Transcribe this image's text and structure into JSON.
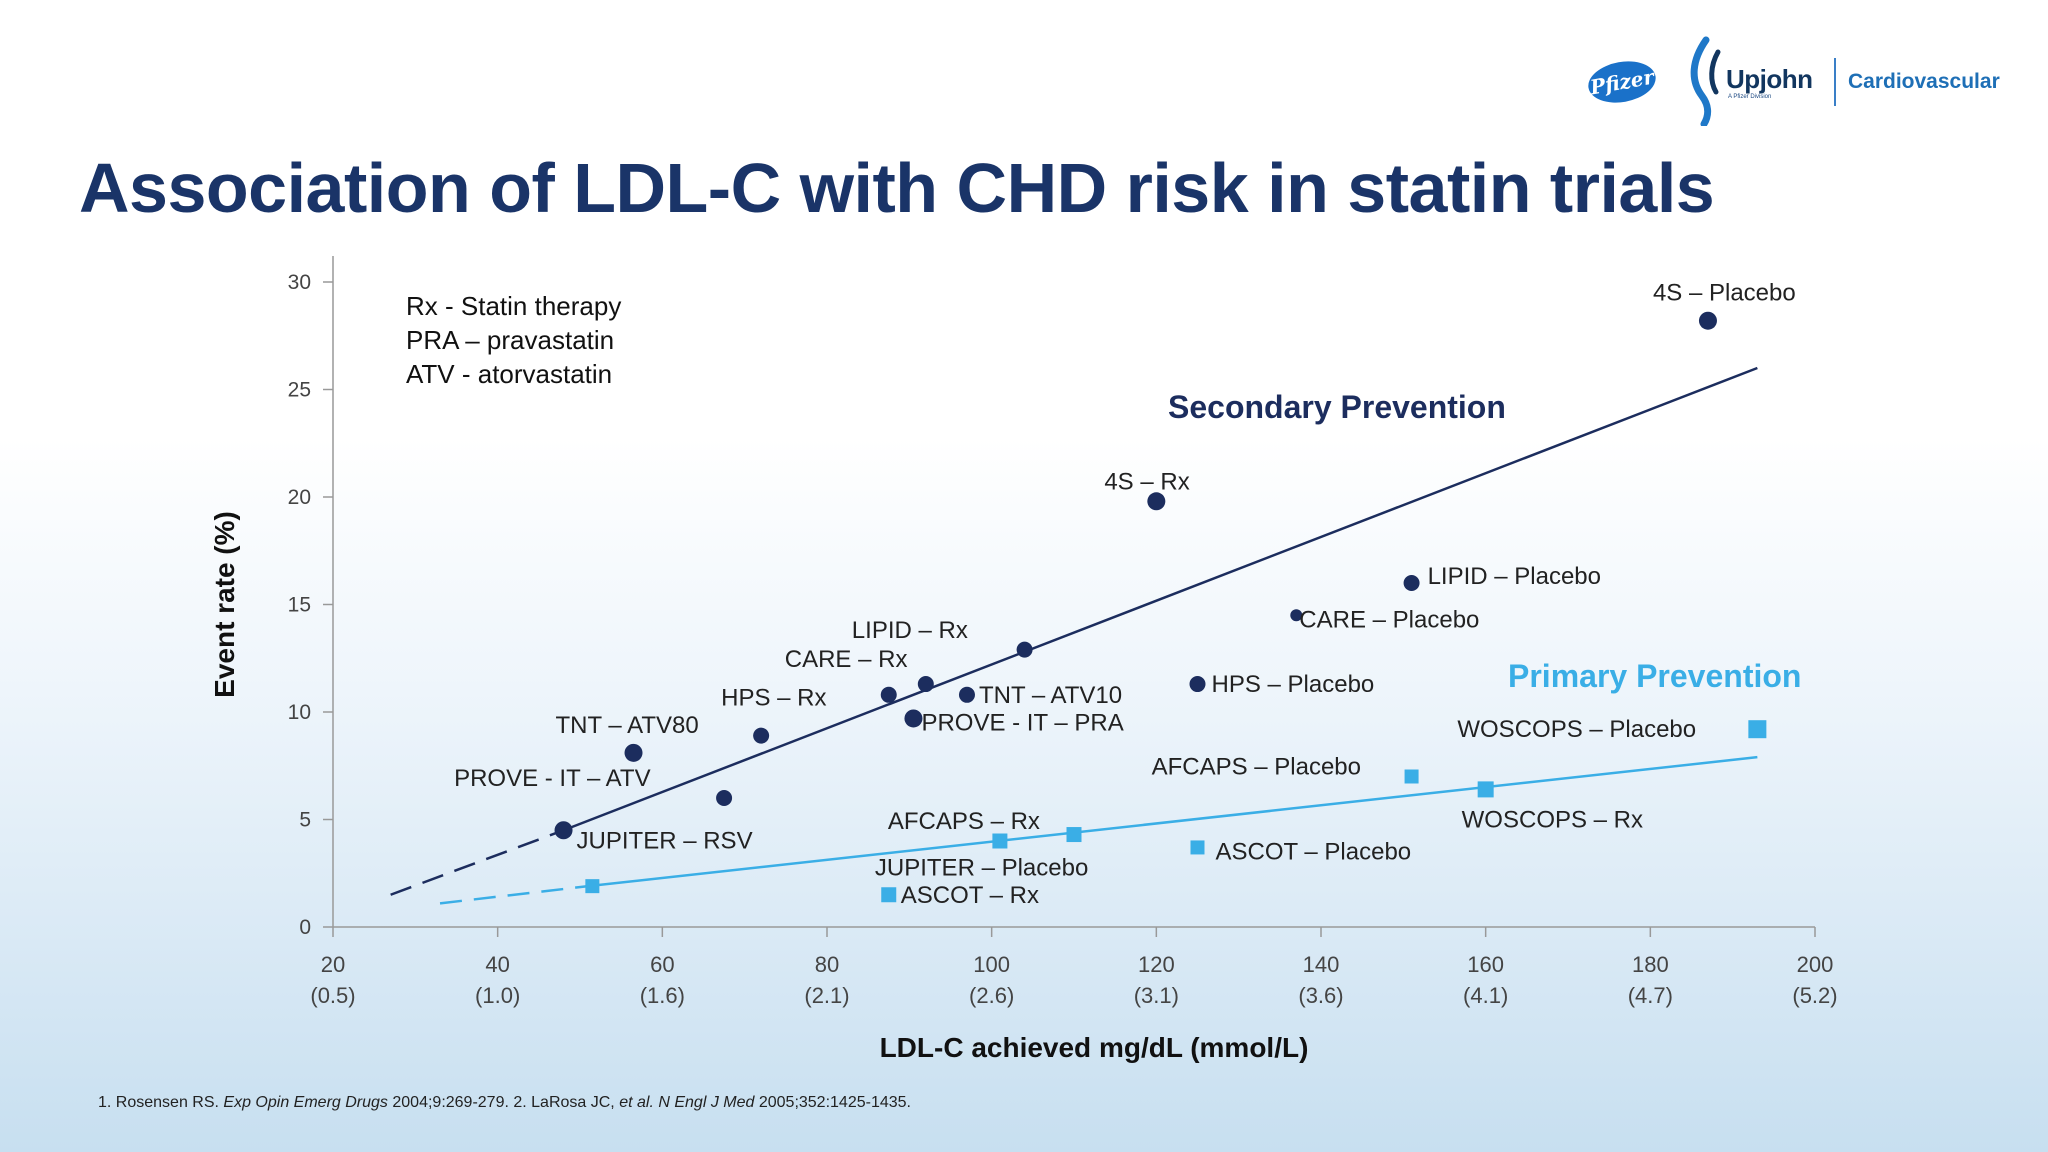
{
  "header": {
    "title": "Association of LDL-C with CHD risk in statin trials",
    "logo_pfizer": "Pfizer",
    "logo_upjohn": "Upjohn",
    "logo_upjohn_sub": "A Pfizer Division",
    "logo_division": "Cardiovascular"
  },
  "colors": {
    "title": "#1a3468",
    "secondary": "#1c2d5e",
    "primary": "#3aaee6",
    "axis": "#999999"
  },
  "footnote": {
    "ref1_author": "1. Rosensen RS.",
    "ref1_journal": "Exp Opin Emerg Drugs",
    "ref1_detail": "2004;9:269-279. 2. LaRosa JC,",
    "ref2_etal": "et al.",
    "ref2_journal": "N Engl J Med",
    "ref2_detail": "2005;352:1425-1435."
  },
  "chart_data": {
    "type": "scatter",
    "xlabel": "LDL-C achieved mg/dL (mmol/L)",
    "ylabel": "Event rate (%)",
    "xlim": [
      20,
      200
    ],
    "ylim": [
      0,
      30
    ],
    "x_ticks": [
      {
        "value": 20,
        "label": "20",
        "sub": "(0.5)"
      },
      {
        "value": 40,
        "label": "40",
        "sub": "(1.0)"
      },
      {
        "value": 60,
        "label": "60",
        "sub": "(1.6)"
      },
      {
        "value": 80,
        "label": "80",
        "sub": "(2.1)"
      },
      {
        "value": 100,
        "label": "100",
        "sub": "(2.6)"
      },
      {
        "value": 120,
        "label": "120",
        "sub": "(3.1)"
      },
      {
        "value": 140,
        "label": "140",
        "sub": "(3.6)"
      },
      {
        "value": 160,
        "label": "160",
        "sub": "(4.1)"
      },
      {
        "value": 180,
        "label": "180",
        "sub": "(4.7)"
      },
      {
        "value": 200,
        "label": "200",
        "sub": "(5.2)"
      }
    ],
    "y_ticks": [
      0,
      5,
      10,
      15,
      20,
      25,
      30
    ],
    "grid": false,
    "legend_note": [
      "Rx - Statin therapy",
      "PRA – pravastatin",
      "ATV - atorvastatin"
    ],
    "series": [
      {
        "name": "Secondary Prevention",
        "marker": "circle",
        "color": "#1c2d5e",
        "trend_solid": [
          [
            48,
            4.5
          ],
          [
            193,
            26.0
          ]
        ],
        "trend_dashed": [
          [
            27,
            1.5
          ],
          [
            48,
            4.5
          ]
        ],
        "points": [
          {
            "x": 187,
            "y": 28.2,
            "label": "4S – Placebo",
            "r": 9
          },
          {
            "x": 120,
            "y": 19.8,
            "label": "4S – Rx",
            "r": 9
          },
          {
            "x": 151,
            "y": 16.0,
            "label": "LIPID – Placebo",
            "r": 8
          },
          {
            "x": 137,
            "y": 14.5,
            "label": "CARE – Placebo",
            "r": 6
          },
          {
            "x": 104,
            "y": 12.9,
            "label": "",
            "r": 8
          },
          {
            "x": 92,
            "y": 11.3,
            "label": "LIPID – Rx",
            "r": 8
          },
          {
            "x": 125,
            "y": 11.3,
            "label": "HPS – Placebo",
            "r": 8
          },
          {
            "x": 87.5,
            "y": 10.8,
            "label": "CARE – Rx",
            "r": 8
          },
          {
            "x": 97,
            "y": 10.8,
            "label": "TNT – ATV10",
            "r": 8
          },
          {
            "x": 90.5,
            "y": 9.7,
            "label": "PROVE - IT – PRA",
            "r": 9
          },
          {
            "x": 72,
            "y": 8.9,
            "label": "HPS – Rx",
            "r": 8
          },
          {
            "x": 56.5,
            "y": 8.1,
            "label": "TNT – ATV80",
            "r": 9
          },
          {
            "x": 67.5,
            "y": 6.0,
            "label": "PROVE - IT – ATV",
            "r": 8
          },
          {
            "x": 48,
            "y": 4.5,
            "label": "JUPITER – RSV",
            "r": 9
          }
        ]
      },
      {
        "name": "Primary Prevention",
        "marker": "square",
        "color": "#3aaee6",
        "trend_solid": [
          [
            51,
            1.9
          ],
          [
            193,
            7.9
          ]
        ],
        "trend_dashed": [
          [
            33,
            1.1
          ],
          [
            51,
            1.9
          ]
        ],
        "points": [
          {
            "x": 193,
            "y": 9.2,
            "label": "WOSCOPS – Placebo",
            "s": 18
          },
          {
            "x": 151,
            "y": 7.0,
            "label": "AFCAPS – Placebo",
            "s": 14
          },
          {
            "x": 160,
            "y": 6.4,
            "label": "WOSCOPS – Rx",
            "s": 16
          },
          {
            "x": 110,
            "y": 4.3,
            "label": "",
            "s": 15
          },
          {
            "x": 101,
            "y": 4.0,
            "label": "AFCAPS – Rx",
            "s": 15
          },
          {
            "x": 125,
            "y": 3.7,
            "label": "ASCOT – Placebo",
            "s": 14
          },
          {
            "x": 51.5,
            "y": 1.9,
            "label": "",
            "s": 14
          },
          {
            "x": 87.5,
            "y": 1.5,
            "label": "ASCOT – Rx",
            "s": 15
          }
        ],
        "extra_labels": [
          {
            "x": 101,
            "y": 2.2,
            "label": "JUPITER – Placebo"
          }
        ]
      }
    ]
  }
}
